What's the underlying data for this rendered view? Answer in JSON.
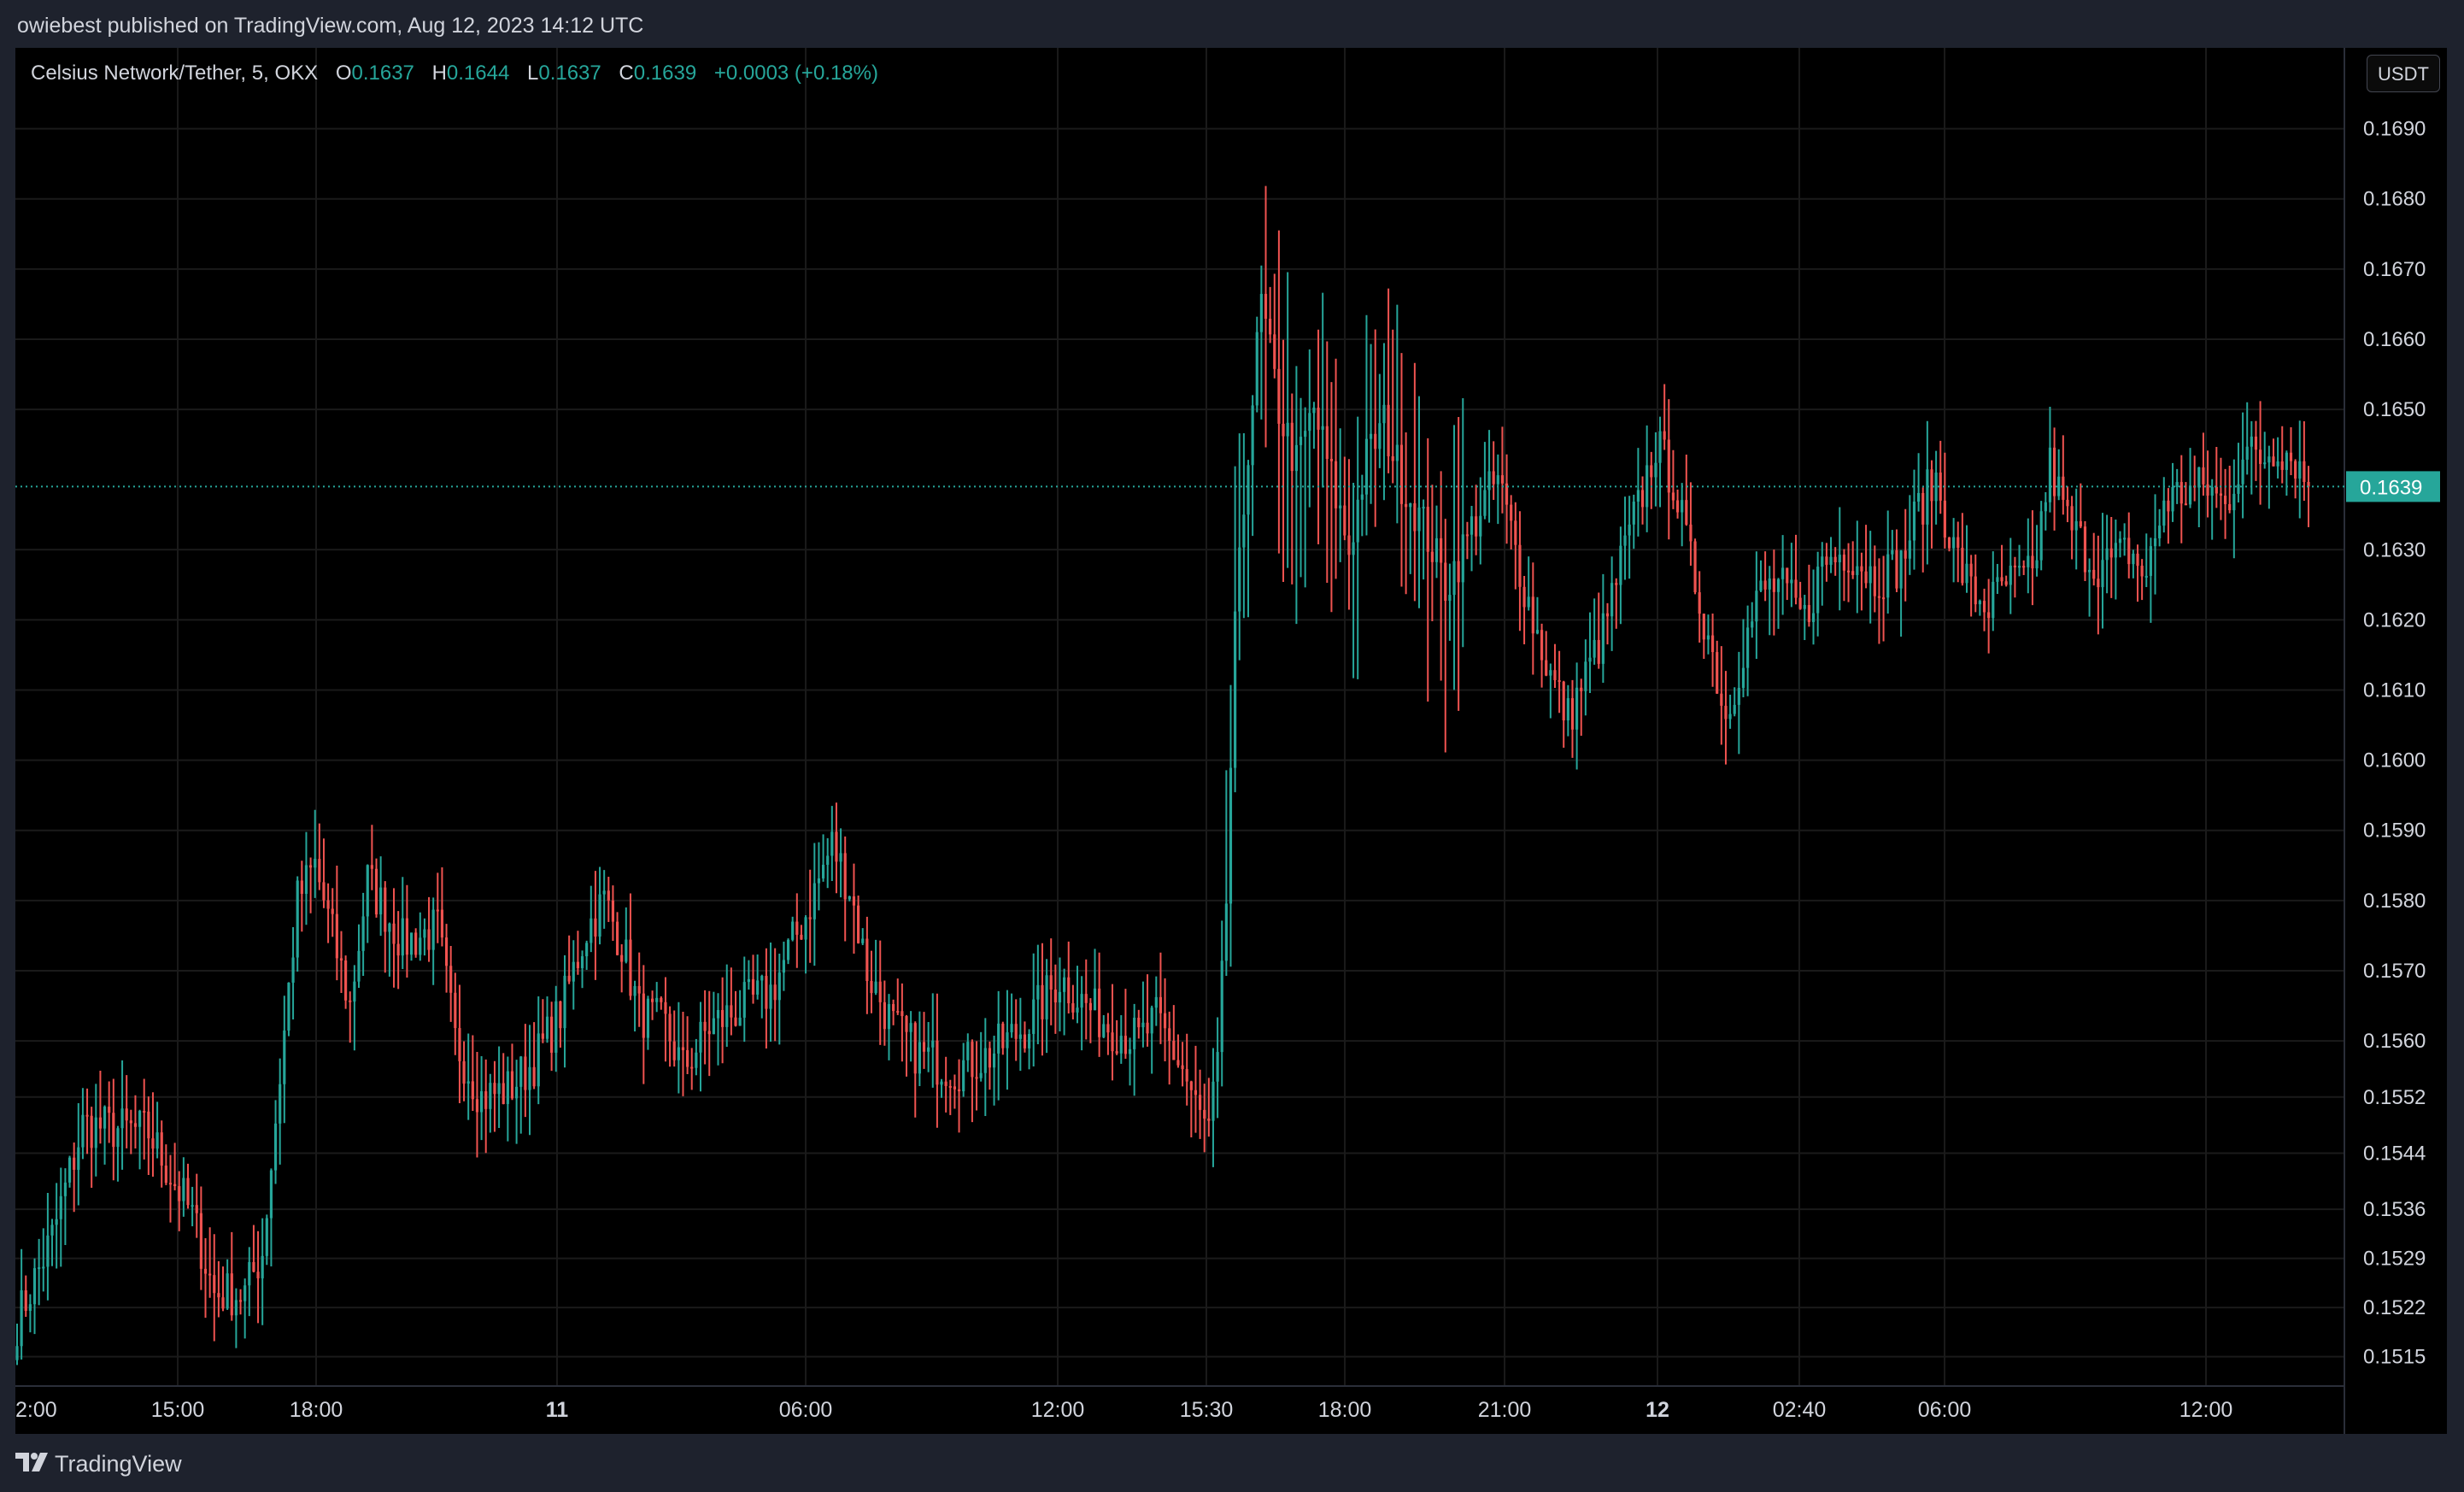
{
  "publish": {
    "text": "owiebest published on TradingView.com, Aug 12, 2023 14:12 UTC"
  },
  "legend": {
    "symbol": "Celsius Network/Tether, 5, OKX",
    "open_label": "O",
    "open": "0.1637",
    "high_label": "H",
    "high": "0.1644",
    "low_label": "L",
    "low": "0.1637",
    "close_label": "C",
    "close": "0.1639",
    "change": "+0.0003 (+0.18%)"
  },
  "currency_button": "USDT",
  "brand": {
    "name": "TradingView",
    "logo_icon": "tradingview-logo-icon"
  },
  "colors": {
    "up": "#26a69a",
    "down": "#ef5350",
    "background": "#000000",
    "frame": "#1e222d",
    "grid": "#1a1a1a",
    "axis_text": "#d1d4dc",
    "price_line": "#26a69a"
  },
  "chart_data": {
    "type": "candlestick",
    "interval": "5",
    "exchange": "OKX",
    "pair": "Celsius Network/Tether",
    "ylim": [
      0.1513,
      0.1693
    ],
    "y_ticks": [
      "0.1690",
      "0.1680",
      "0.1670",
      "0.1660",
      "0.1650",
      "0.1630",
      "0.1620",
      "0.1610",
      "0.1600",
      "0.1590",
      "0.1580",
      "0.1570",
      "0.1560",
      "0.1552",
      "0.1544",
      "0.1536",
      "0.1529",
      "0.1522",
      "0.1515"
    ],
    "x_ticks": [
      {
        "label": "2:00",
        "bold": false
      },
      {
        "label": "15:00",
        "bold": false
      },
      {
        "label": "18:00",
        "bold": false
      },
      {
        "label": "11",
        "bold": true
      },
      {
        "label": "06:00",
        "bold": false
      },
      {
        "label": "12:00",
        "bold": false
      },
      {
        "label": "15:30",
        "bold": false
      },
      {
        "label": "18:00",
        "bold": false
      },
      {
        "label": "21:00",
        "bold": false
      },
      {
        "label": "12",
        "bold": true
      },
      {
        "label": "02:40",
        "bold": false
      },
      {
        "label": "06:00",
        "bold": false
      },
      {
        "label": "12:00",
        "bold": false
      }
    ],
    "last_price": "0.1639",
    "grid": true,
    "price_anchors": [
      [
        0,
        0.152
      ],
      [
        8,
        0.1532
      ],
      [
        15,
        0.1548
      ],
      [
        30,
        0.1547
      ],
      [
        40,
        0.1535
      ],
      [
        45,
        0.1524
      ],
      [
        52,
        0.1524
      ],
      [
        56,
        0.153
      ],
      [
        60,
        0.1555
      ],
      [
        64,
        0.158
      ],
      [
        68,
        0.1585
      ],
      [
        72,
        0.1575
      ],
      [
        76,
        0.1565
      ],
      [
        80,
        0.1583
      ],
      [
        88,
        0.1574
      ],
      [
        96,
        0.1576
      ],
      [
        100,
        0.156
      ],
      [
        106,
        0.1552
      ],
      [
        112,
        0.1553
      ],
      [
        118,
        0.1557
      ],
      [
        124,
        0.1564
      ],
      [
        130,
        0.1576
      ],
      [
        134,
        0.158
      ],
      [
        138,
        0.1574
      ],
      [
        142,
        0.1564
      ],
      [
        148,
        0.1562
      ],
      [
        152,
        0.1556
      ],
      [
        158,
        0.1562
      ],
      [
        166,
        0.1565
      ],
      [
        172,
        0.1567
      ],
      [
        180,
        0.1578
      ],
      [
        186,
        0.1588
      ],
      [
        190,
        0.1582
      ],
      [
        194,
        0.157
      ],
      [
        200,
        0.1562
      ],
      [
        206,
        0.1558
      ],
      [
        214,
        0.1556
      ],
      [
        222,
        0.1558
      ],
      [
        230,
        0.1562
      ],
      [
        238,
        0.1569
      ],
      [
        244,
        0.1565
      ],
      [
        250,
        0.1562
      ],
      [
        256,
        0.156
      ],
      [
        260,
        0.1563
      ],
      [
        266,
        0.1556
      ],
      [
        270,
        0.1549
      ],
      [
        272,
        0.1547
      ],
      [
        274,
        0.1556
      ],
      [
        276,
        0.158
      ],
      [
        278,
        0.1618
      ],
      [
        281,
        0.1645
      ],
      [
        284,
        0.1665
      ],
      [
        288,
        0.165
      ],
      [
        292,
        0.1642
      ],
      [
        296,
        0.165
      ],
      [
        300,
        0.164
      ],
      [
        304,
        0.163
      ],
      [
        308,
        0.1643
      ],
      [
        312,
        0.1648
      ],
      [
        316,
        0.164
      ],
      [
        322,
        0.1632
      ],
      [
        326,
        0.1625
      ],
      [
        330,
        0.163
      ],
      [
        334,
        0.1636
      ],
      [
        338,
        0.164
      ],
      [
        342,
        0.163
      ],
      [
        346,
        0.162
      ],
      [
        350,
        0.1612
      ],
      [
        354,
        0.1606
      ],
      [
        358,
        0.1612
      ],
      [
        362,
        0.1618
      ],
      [
        366,
        0.1628
      ],
      [
        370,
        0.1636
      ],
      [
        374,
        0.1645
      ],
      [
        378,
        0.164
      ],
      [
        382,
        0.1628
      ],
      [
        386,
        0.1618
      ],
      [
        390,
        0.1606
      ],
      [
        394,
        0.1616
      ],
      [
        398,
        0.1624
      ],
      [
        402,
        0.1625
      ],
      [
        408,
        0.162
      ],
      [
        412,
        0.1628
      ],
      [
        418,
        0.163
      ],
      [
        424,
        0.1626
      ],
      [
        430,
        0.1628
      ],
      [
        434,
        0.1636
      ],
      [
        438,
        0.164
      ],
      [
        442,
        0.163
      ],
      [
        446,
        0.1624
      ],
      [
        450,
        0.1622
      ],
      [
        454,
        0.1625
      ],
      [
        460,
        0.1626
      ],
      [
        464,
        0.1642
      ],
      [
        468,
        0.1634
      ],
      [
        474,
        0.1628
      ],
      [
        478,
        0.1628
      ],
      [
        482,
        0.163
      ],
      [
        486,
        0.1626
      ],
      [
        490,
        0.1637
      ],
      [
        494,
        0.1638
      ],
      [
        500,
        0.1639
      ],
      [
        504,
        0.1636
      ],
      [
        508,
        0.1644
      ],
      [
        512,
        0.1643
      ],
      [
        516,
        0.1645
      ],
      [
        520,
        0.1643
      ],
      [
        523,
        0.1639
      ]
    ]
  }
}
